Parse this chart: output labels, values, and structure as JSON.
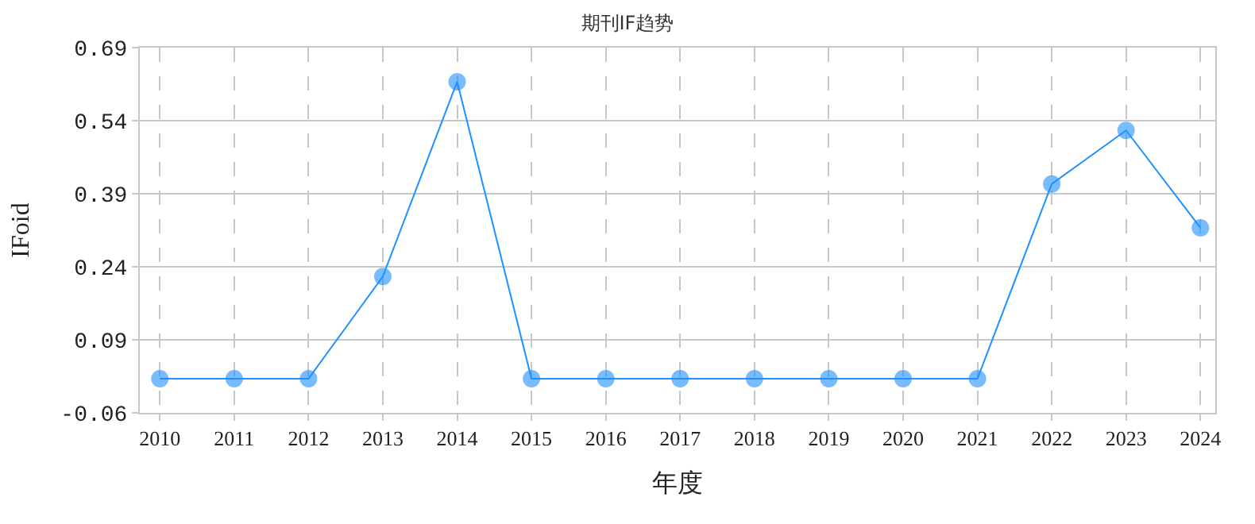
{
  "chart_data": {
    "type": "line",
    "title": "期刊IF趋势",
    "xlabel": "年度",
    "ylabel": "IFoid",
    "categories": [
      "2010",
      "2011",
      "2012",
      "2013",
      "2014",
      "2015",
      "2016",
      "2017",
      "2018",
      "2019",
      "2020",
      "2021",
      "2022",
      "2023",
      "2024"
    ],
    "series": [
      {
        "color": "#1e90ff",
        "values": [
          0.01,
          0.01,
          0.01,
          0.22,
          0.62,
          0.01,
          0.01,
          0.01,
          0.01,
          0.01,
          0.01,
          0.01,
          0.41,
          0.52,
          0.32
        ]
      }
    ],
    "ylim": [
      -0.06,
      0.69
    ],
    "yticks": [
      -0.06,
      0.09,
      0.24,
      0.39,
      0.54,
      0.69
    ],
    "grid": true,
    "marker": "circle",
    "line_style": "solid"
  }
}
